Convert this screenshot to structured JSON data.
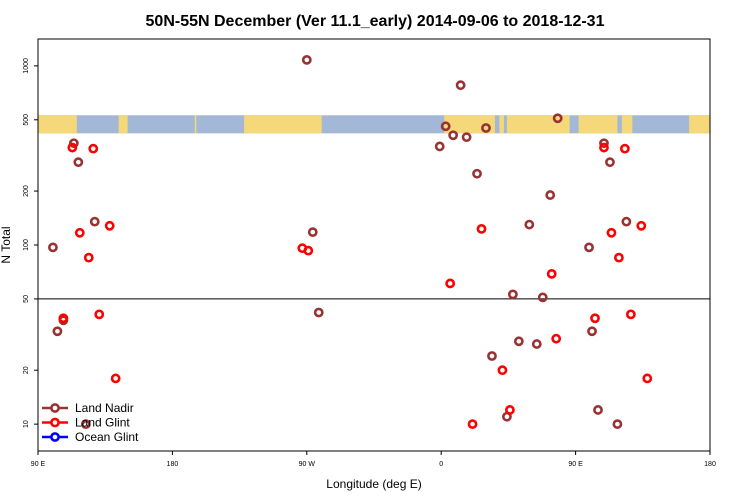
{
  "chart_data": {
    "type": "scatter",
    "title": "50N-55N December (Ver 11.1_early)   2014-09-06 to 2018-12-31",
    "xlabel": "Longitude (deg E)",
    "ylabel": "N Total",
    "xlim": [
      90,
      540
    ],
    "ylim_log10": [
      0.85,
      3.15
    ],
    "yscale": "log",
    "x_ticks": [
      {
        "value": 90,
        "label": "90 E"
      },
      {
        "value": 180,
        "label": "180"
      },
      {
        "value": 270,
        "label": "90 W"
      },
      {
        "value": 360,
        "label": "0"
      },
      {
        "value": 450,
        "label": "90 E"
      },
      {
        "value": 540,
        "label": "180"
      }
    ],
    "y_ticks": [
      {
        "value": 10,
        "label": "10"
      },
      {
        "value": 20,
        "label": "20"
      },
      {
        "value": 50,
        "label": "50"
      },
      {
        "value": 100,
        "label": "100"
      },
      {
        "value": 200,
        "label": "200"
      },
      {
        "value": 500,
        "label": "500"
      },
      {
        "value": 1000,
        "label": "1000"
      }
    ],
    "reference_line": 50,
    "map_band": {
      "y_top": 530,
      "y_bottom": 420,
      "land_color": "#f4d87a",
      "ocean_color": "#a3b8d6"
    },
    "legend_position": "bottom-left",
    "series": [
      {
        "name": "Land Nadir",
        "color": "#993333",
        "points": [
          [
            100,
            97
          ],
          [
            103,
            33
          ],
          [
            107,
            38
          ],
          [
            114,
            370
          ],
          [
            117,
            290
          ],
          [
            122,
            10
          ],
          [
            128,
            135
          ],
          [
            270,
            1080
          ],
          [
            274,
            118
          ],
          [
            278,
            42
          ],
          [
            359,
            355
          ],
          [
            363,
            460
          ],
          [
            368,
            410
          ],
          [
            373,
            780
          ],
          [
            377,
            400
          ],
          [
            384,
            250
          ],
          [
            390,
            450
          ],
          [
            394,
            24
          ],
          [
            404,
            11
          ],
          [
            408,
            53
          ],
          [
            412,
            29
          ],
          [
            419,
            130
          ],
          [
            424,
            28
          ],
          [
            428,
            51
          ],
          [
            433,
            190
          ],
          [
            438,
            510
          ],
          [
            459,
            97
          ],
          [
            461,
            33
          ],
          [
            465,
            12
          ],
          [
            469,
            370
          ],
          [
            473,
            290
          ],
          [
            478,
            10
          ],
          [
            484,
            135
          ]
        ]
      },
      {
        "name": "Land Glint",
        "color": "#ff0000",
        "points": [
          [
            107,
            39
          ],
          [
            113,
            350
          ],
          [
            118,
            117
          ],
          [
            124,
            85
          ],
          [
            127,
            345
          ],
          [
            131,
            41
          ],
          [
            138,
            128
          ],
          [
            142,
            18
          ],
          [
            267,
            96
          ],
          [
            271,
            93
          ],
          [
            366,
            61
          ],
          [
            381,
            10
          ],
          [
            387,
            123
          ],
          [
            401,
            20
          ],
          [
            406,
            12
          ],
          [
            434,
            69
          ],
          [
            437,
            30
          ],
          [
            463,
            39
          ],
          [
            469,
            350
          ],
          [
            474,
            117
          ],
          [
            479,
            85
          ],
          [
            483,
            345
          ],
          [
            487,
            41
          ],
          [
            494,
            128
          ],
          [
            498,
            18
          ]
        ]
      },
      {
        "name": "Ocean Glint",
        "color": "#0000ff",
        "points": []
      }
    ]
  }
}
